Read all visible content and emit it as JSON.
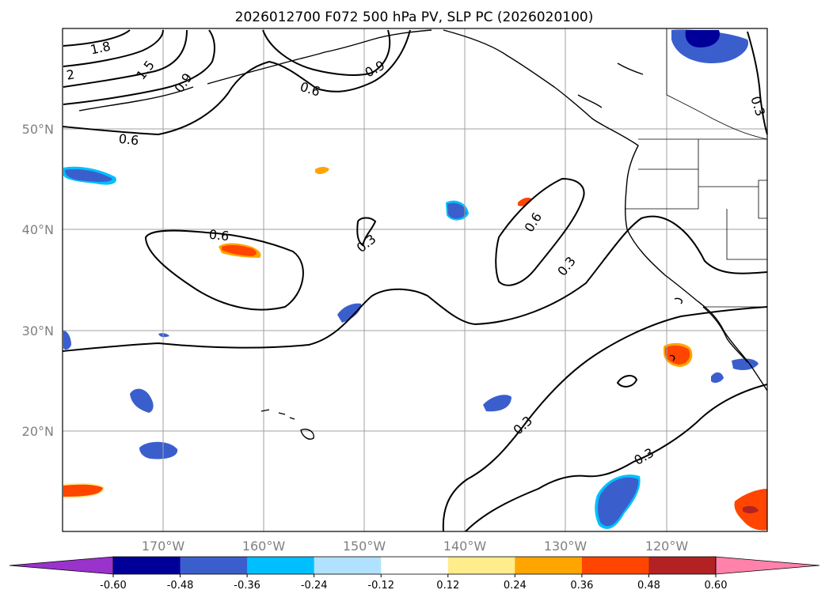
{
  "title": "2026012700 F072 500 hPa PV, SLP PC (2026020100)",
  "axes": {
    "lon_labels": [
      "170°W",
      "160°W",
      "150°W",
      "140°W",
      "130°W",
      "120°W"
    ],
    "lat_labels": [
      "50°N",
      "40°N",
      "30°N",
      "20°N"
    ],
    "lon_values": [
      -170,
      -160,
      -150,
      -140,
      -130,
      -120
    ],
    "lat_values": [
      50,
      40,
      30,
      20
    ],
    "lon_range": [
      -180,
      -110
    ],
    "lat_range": [
      10,
      60
    ],
    "grid": true
  },
  "colorbar": {
    "ticks": [
      "-0.60",
      "-0.48",
      "-0.36",
      "-0.24",
      "-0.12",
      "0.12",
      "0.24",
      "0.36",
      "0.48",
      "0.60"
    ],
    "levels": [
      -0.6,
      -0.48,
      -0.36,
      -0.24,
      -0.12,
      0.12,
      0.24,
      0.36,
      0.48,
      0.6
    ],
    "colors": [
      "#9933cc",
      "#000099",
      "#3a5fcd",
      "#00bfff",
      "#b0e2ff",
      "#ffffff",
      "#ffec8b",
      "#ffa500",
      "#ff4500",
      "#b22222",
      "#ff82ab"
    ],
    "extend": "both"
  },
  "contour_labels": [
    "1.8",
    "1.5",
    "2",
    "0.9",
    "0.9",
    "0.6",
    "0.6",
    "0.3",
    "0.6",
    "0.3",
    "0.6",
    "0.3",
    "0.3",
    "0.3",
    "0.3"
  ]
}
